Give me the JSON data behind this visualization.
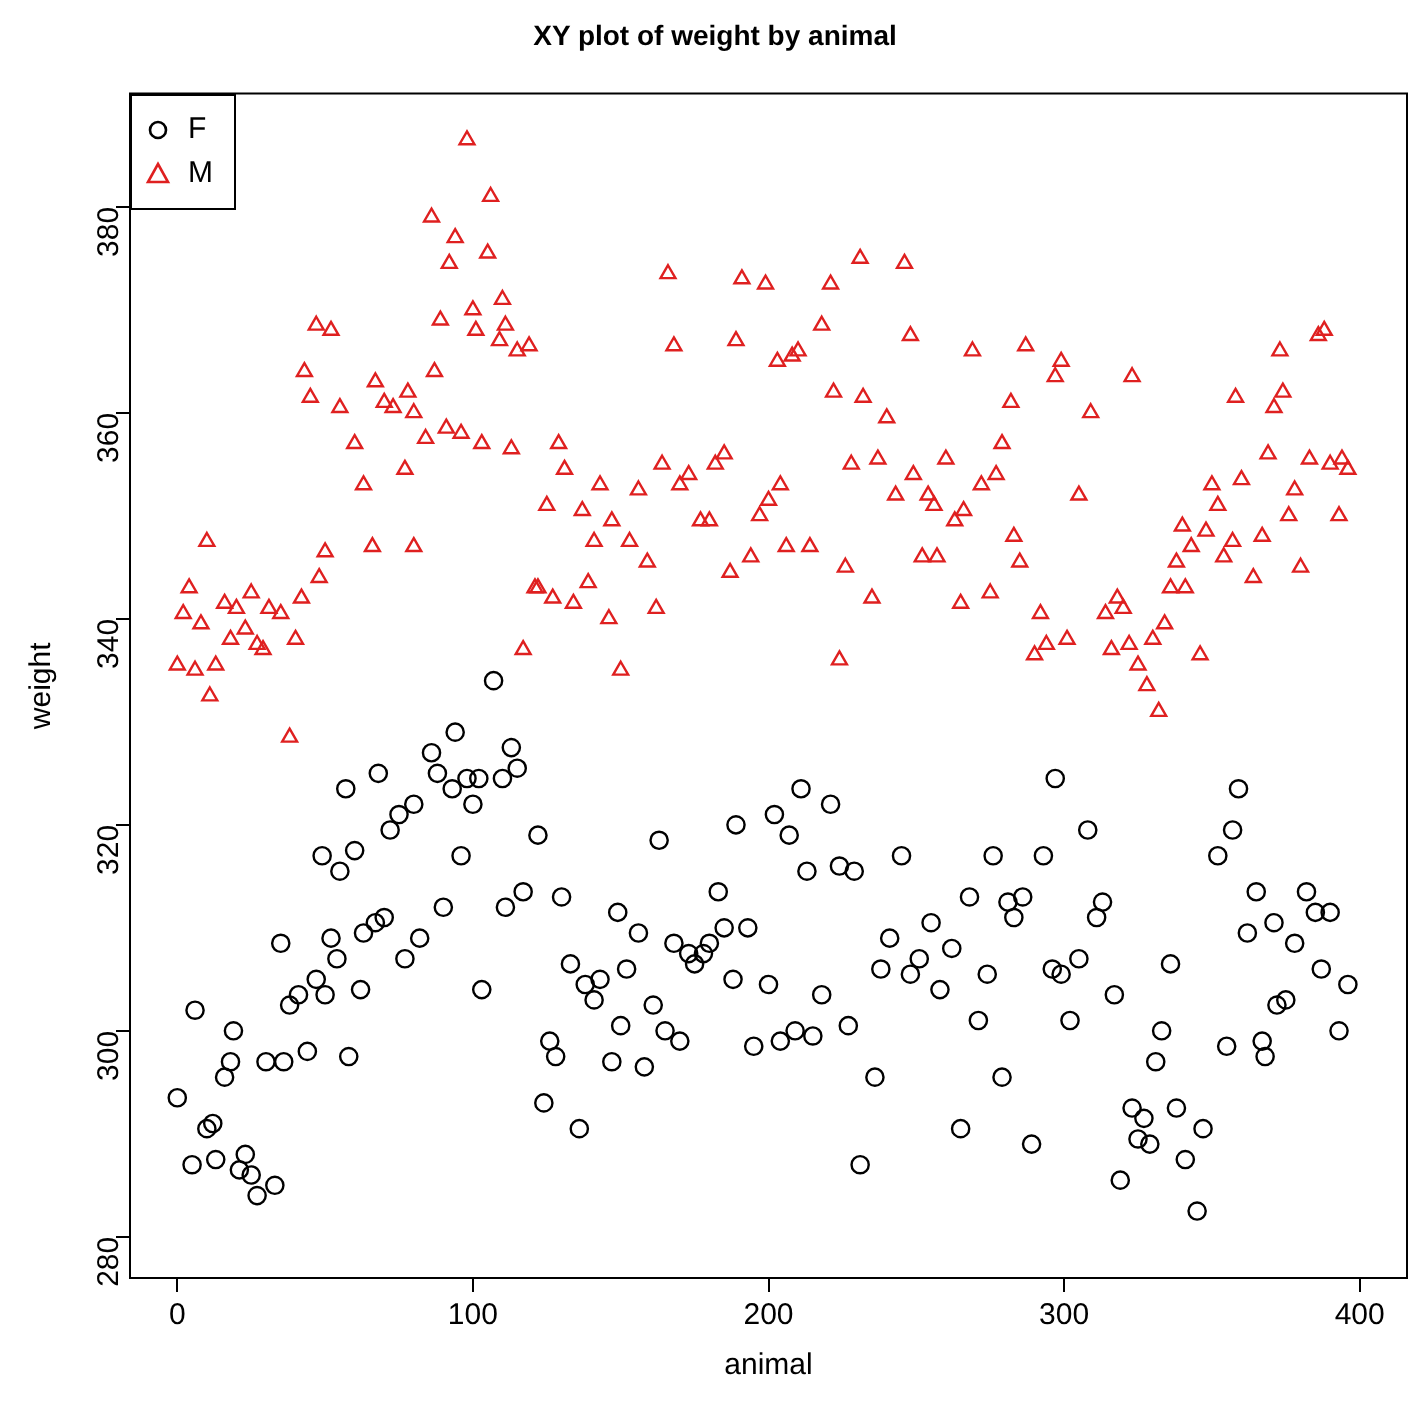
{
  "chart_data": {
    "type": "scatter",
    "title": "XY plot of weight by animal",
    "xlabel": "animal",
    "ylabel": "weight",
    "xlim": [
      -16,
      416
    ],
    "ylim": [
      276,
      391
    ],
    "xticks": [
      0,
      100,
      200,
      300,
      400
    ],
    "yticks": [
      280,
      300,
      320,
      340,
      360,
      380
    ],
    "grid": false,
    "legend": "top left",
    "series": [
      {
        "name": "F",
        "color": "#000000",
        "marker": "circle",
        "x": [
          0,
          5,
          6,
          10,
          12,
          13,
          16,
          18,
          19,
          21,
          23,
          25,
          27,
          30,
          33,
          35,
          36,
          38,
          41,
          44,
          47,
          49,
          50,
          52,
          54,
          55,
          57,
          58,
          60,
          62,
          63,
          67,
          68,
          70,
          72,
          75,
          77,
          80,
          82,
          86,
          88,
          90,
          93,
          94,
          96,
          98,
          100,
          102,
          103,
          107,
          110,
          111,
          113,
          115,
          117,
          122,
          124,
          126,
          128,
          130,
          133,
          136,
          138,
          141,
          143,
          147,
          149,
          150,
          152,
          156,
          158,
          161,
          163,
          165,
          168,
          170,
          173,
          175,
          178,
          180,
          183,
          185,
          188,
          189,
          193,
          195,
          200,
          202,
          204,
          207,
          209,
          211,
          213,
          215,
          218,
          221,
          224,
          227,
          229,
          231,
          236,
          238,
          241,
          245,
          248,
          251,
          255,
          258,
          262,
          265,
          268,
          271,
          274,
          276,
          279,
          281,
          283,
          286,
          289,
          293,
          297,
          296,
          299,
          302,
          305,
          308,
          311,
          313,
          317,
          319,
          323,
          325,
          327,
          329,
          331,
          333,
          336,
          338,
          341,
          345,
          347,
          352,
          355,
          357,
          359,
          362,
          365,
          367,
          368,
          371,
          372,
          375,
          378,
          382,
          385,
          387,
          390,
          393,
          396
        ],
        "values": [
          293.5,
          287,
          302,
          290.5,
          291,
          287.5,
          295.5,
          297,
          300,
          286.5,
          288,
          286,
          284,
          297,
          285,
          308.5,
          297,
          302.5,
          303.5,
          298,
          305,
          317,
          303.5,
          309,
          307,
          315.5,
          323.5,
          297.5,
          317.5,
          304,
          309.5,
          310.5,
          325,
          311,
          319.5,
          321,
          307,
          322,
          309,
          327,
          325,
          312,
          323.5,
          329,
          317,
          324.5,
          322,
          324.5,
          304,
          334,
          324.5,
          312,
          327.5,
          325.5,
          313.5,
          319,
          293,
          299,
          297.5,
          313,
          306.5,
          290.5,
          304.5,
          303,
          305,
          297,
          311.5,
          300.5,
          306,
          309.5,
          296.5,
          302.5,
          318.5,
          300,
          308.5,
          299,
          307.5,
          306.5,
          307.5,
          308.5,
          313.5,
          310,
          305,
          320,
          310,
          298.5,
          304.5,
          321,
          299,
          319,
          300,
          323.5,
          315.5,
          299.5,
          303.5,
          322,
          316,
          300.5,
          315.5,
          287,
          295.5,
          306,
          309,
          317,
          305.5,
          307,
          310.5,
          304,
          308,
          290.5,
          313,
          301,
          305.5,
          317,
          295.5,
          312.5,
          311,
          313,
          289,
          317,
          324.5,
          306,
          305.5,
          301,
          307,
          319.5,
          311,
          312.5,
          303.5,
          285.5,
          292.5,
          289.5,
          291.5,
          289,
          297,
          300,
          306.5,
          292.5,
          287.5,
          282.5,
          290.5,
          317,
          298.5,
          319.5,
          323.5,
          309.5,
          313.5,
          299,
          297.5,
          310.5,
          302.5,
          303,
          308.5,
          313.5,
          311.5,
          306,
          311.5,
          300,
          304.5
        ]
      },
      {
        "name": "M",
        "color": "#df2020",
        "marker": "triangle",
        "x": [
          0,
          2,
          4,
          6,
          8,
          10,
          11,
          13,
          16,
          18,
          20,
          23,
          25,
          27,
          29,
          31,
          35,
          38,
          40,
          42,
          43,
          45,
          47,
          48,
          50,
          52,
          55,
          60,
          63,
          66,
          67,
          70,
          73,
          77,
          78,
          80,
          80,
          84,
          86,
          87,
          89,
          91,
          92,
          94,
          96,
          98,
          100,
          101,
          103,
          105,
          106,
          109,
          110,
          111,
          113,
          115,
          117,
          119,
          121,
          122,
          125,
          127,
          129,
          131,
          134,
          137,
          139,
          141,
          143,
          146,
          147,
          150,
          153,
          156,
          159,
          162,
          164,
          166,
          168,
          170,
          173,
          177,
          180,
          182,
          185,
          187,
          189,
          191,
          194,
          197,
          199,
          200,
          203,
          204,
          206,
          208,
          210,
          214,
          218,
          221,
          222,
          224,
          226,
          228,
          231,
          232,
          235,
          237,
          240,
          243,
          246,
          248,
          249,
          252,
          254,
          256,
          257,
          260,
          263,
          265,
          266,
          269,
          272,
          275,
          277,
          279,
          282,
          283,
          285,
          287,
          290,
          292,
          294,
          297,
          299,
          301,
          305,
          309,
          314,
          316,
          318,
          320,
          322,
          323,
          325,
          328,
          330,
          332,
          334,
          336,
          338,
          340,
          341,
          343,
          346,
          348,
          350,
          352,
          354,
          357,
          358,
          360,
          364,
          367,
          369,
          371,
          373,
          374,
          376,
          378,
          380,
          383,
          386,
          388,
          390,
          393,
          394,
          396
        ],
        "values": [
          335.5,
          340.5,
          343,
          335,
          339.5,
          347.5,
          332.5,
          335.5,
          341.5,
          338,
          341,
          339,
          342.5,
          337.5,
          337,
          341,
          340.5,
          328.5,
          338,
          342,
          364,
          361.5,
          368.5,
          344,
          346.5,
          368,
          360.5,
          357,
          353,
          347,
          363,
          361,
          360.5,
          354.5,
          362,
          360,
          347,
          357.5,
          379,
          364,
          369,
          358.5,
          374.5,
          377,
          358,
          386.5,
          370,
          368,
          357,
          375.5,
          381,
          367,
          371,
          368.5,
          356.5,
          366,
          337,
          366.5,
          343,
          343,
          351,
          342,
          357,
          354.5,
          341.5,
          350.5,
          343.5,
          347.5,
          353,
          340,
          349.5,
          335,
          347.5,
          352.5,
          345.5,
          341,
          355,
          373.5,
          366.5,
          353,
          354,
          349.5,
          349.5,
          355,
          356,
          344.5,
          367,
          373,
          346,
          350,
          372.5,
          351.5,
          365,
          353,
          347,
          365.5,
          366,
          347,
          368.5,
          372.5,
          362,
          336,
          345,
          355,
          375,
          361.5,
          342,
          355.5,
          359.5,
          352,
          374.5,
          367.5,
          354,
          346,
          352,
          351,
          346,
          355.5,
          349.5,
          341.5,
          350.5,
          366,
          353,
          342.5,
          354,
          357,
          361,
          348,
          345.5,
          366.5,
          336.5,
          340.5,
          337.5,
          363.5,
          365,
          338,
          352,
          360,
          340.5,
          337,
          342,
          341,
          337.5,
          363.5,
          335.5,
          333.5,
          338,
          331,
          339.5,
          343,
          345.5,
          349,
          343,
          347,
          336.5,
          348.5,
          353,
          351,
          346,
          347.5,
          361.5,
          353.5,
          344,
          348,
          356,
          360.5,
          366,
          362,
          350,
          352.5,
          345,
          355.5,
          367.5,
          368,
          355,
          350,
          355.5,
          354.5
        ]
      }
    ]
  }
}
